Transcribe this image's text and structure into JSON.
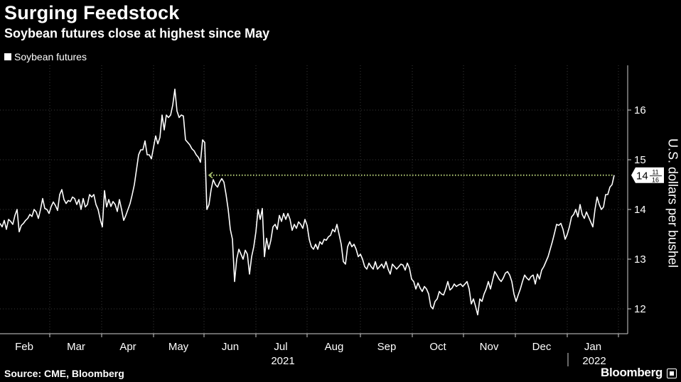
{
  "chart_data": {
    "type": "line",
    "title": "Surging Feedstock",
    "subtitle": "Soybean futures close at highest since May",
    "ylabel": "U.S. dollars per bushel",
    "series_name": "Soybean futures",
    "y_ticks": [
      12,
      13,
      14,
      15,
      16
    ],
    "ylim": [
      11.6,
      16.6
    ],
    "x_month_labels": [
      "Feb",
      "Mar",
      "Apr",
      "May",
      "Jun",
      "Jul",
      "Aug",
      "Sep",
      "Oct",
      "Nov",
      "Dec",
      "Jan"
    ],
    "year_labels": [
      "2021",
      "2022"
    ],
    "last_value_label": {
      "whole": "14",
      "num": "11",
      "den": "16"
    },
    "reference_line_value": 14.69,
    "line_color": "#ffffff",
    "reference_color": "#b8d27a",
    "points": [
      [
        0,
        13.72
      ],
      [
        3,
        13.65
      ],
      [
        6,
        13.78
      ],
      [
        9,
        13.6
      ],
      [
        12,
        13.8
      ],
      [
        15,
        13.76
      ],
      [
        18,
        13.7
      ],
      [
        21,
        13.88
      ],
      [
        24,
        14.0
      ],
      [
        27,
        13.55
      ],
      [
        30,
        13.68
      ],
      [
        33,
        13.72
      ],
      [
        36,
        13.78
      ],
      [
        39,
        13.82
      ],
      [
        42,
        13.9
      ],
      [
        45,
        13.86
      ],
      [
        48,
        14.0
      ],
      [
        51,
        13.95
      ],
      [
        54,
        13.82
      ],
      [
        57,
        14.0
      ],
      [
        60,
        14.22
      ],
      [
        63,
        14.02
      ],
      [
        66,
        14.0
      ],
      [
        69,
        13.92
      ],
      [
        72,
        14.06
      ],
      [
        75,
        14.15
      ],
      [
        78,
        14.08
      ],
      [
        81,
        13.98
      ],
      [
        84,
        14.3
      ],
      [
        87,
        14.4
      ],
      [
        90,
        14.2
      ],
      [
        93,
        14.12
      ],
      [
        96,
        14.18
      ],
      [
        99,
        14.16
      ],
      [
        102,
        14.25
      ],
      [
        105,
        14.22
      ],
      [
        108,
        14.1
      ],
      [
        111,
        14.2
      ],
      [
        114,
        14.0
      ],
      [
        117,
        14.22
      ],
      [
        120,
        14.05
      ],
      [
        123,
        14.1
      ],
      [
        126,
        14.3
      ],
      [
        129,
        14.25
      ],
      [
        132,
        14.3
      ],
      [
        135,
        14.1
      ],
      [
        138,
        14.0
      ],
      [
        141,
        13.8
      ],
      [
        144,
        13.65
      ],
      [
        147,
        14.38
      ],
      [
        150,
        14.05
      ],
      [
        153,
        14.2
      ],
      [
        156,
        14.06
      ],
      [
        159,
        14.16
      ],
      [
        162,
        14.1
      ],
      [
        165,
        13.96
      ],
      [
        168,
        14.2
      ],
      [
        171,
        14.0
      ],
      [
        174,
        13.78
      ],
      [
        177,
        13.88
      ],
      [
        180,
        14.0
      ],
      [
        183,
        14.12
      ],
      [
        186,
        14.3
      ],
      [
        189,
        14.5
      ],
      [
        192,
        14.8
      ],
      [
        195,
        15.1
      ],
      [
        198,
        15.2
      ],
      [
        201,
        15.2
      ],
      [
        204,
        15.38
      ],
      [
        207,
        15.1
      ],
      [
        210,
        15.1
      ],
      [
        213,
        15.02
      ],
      [
        216,
        15.25
      ],
      [
        219,
        15.48
      ],
      [
        222,
        15.32
      ],
      [
        225,
        15.45
      ],
      [
        228,
        15.9
      ],
      [
        231,
        15.6
      ],
      [
        234,
        15.9
      ],
      [
        237,
        15.85
      ],
      [
        240,
        15.9
      ],
      [
        243,
        16.1
      ],
      [
        246,
        16.42
      ],
      [
        249,
        15.98
      ],
      [
        252,
        15.85
      ],
      [
        255,
        15.9
      ],
      [
        258,
        15.88
      ],
      [
        261,
        15.4
      ],
      [
        264,
        15.35
      ],
      [
        267,
        15.3
      ],
      [
        270,
        15.22
      ],
      [
        273,
        15.18
      ],
      [
        276,
        15.1
      ],
      [
        279,
        15.05
      ],
      [
        282,
        14.95
      ],
      [
        285,
        15.4
      ],
      [
        288,
        15.35
      ],
      [
        291,
        14.0
      ],
      [
        294,
        14.1
      ],
      [
        297,
        14.4
      ],
      [
        300,
        14.6
      ],
      [
        303,
        14.5
      ],
      [
        306,
        14.45
      ],
      [
        309,
        14.55
      ],
      [
        312,
        14.62
      ],
      [
        315,
        14.55
      ],
      [
        318,
        14.3
      ],
      [
        321,
        14.0
      ],
      [
        324,
        13.6
      ],
      [
        327,
        13.4
      ],
      [
        330,
        12.55
      ],
      [
        333,
        13.0
      ],
      [
        336,
        13.2
      ],
      [
        339,
        13.1
      ],
      [
        342,
        13.0
      ],
      [
        345,
        13.18
      ],
      [
        348,
        13.1
      ],
      [
        351,
        12.7
      ],
      [
        354,
        13.05
      ],
      [
        357,
        13.25
      ],
      [
        360,
        13.55
      ],
      [
        363,
        14.0
      ],
      [
        366,
        13.8
      ],
      [
        369,
        14.02
      ],
      [
        372,
        13.05
      ],
      [
        375,
        13.42
      ],
      [
        378,
        13.2
      ],
      [
        381,
        13.38
      ],
      [
        384,
        13.65
      ],
      [
        387,
        13.7
      ],
      [
        390,
        13.6
      ],
      [
        393,
        13.88
      ],
      [
        396,
        13.76
      ],
      [
        399,
        13.92
      ],
      [
        402,
        13.8
      ],
      [
        405,
        13.92
      ],
      [
        408,
        13.8
      ],
      [
        411,
        13.58
      ],
      [
        414,
        13.7
      ],
      [
        417,
        13.62
      ],
      [
        420,
        13.75
      ],
      [
        423,
        13.7
      ],
      [
        426,
        13.62
      ],
      [
        429,
        13.8
      ],
      [
        432,
        13.68
      ],
      [
        435,
        13.4
      ],
      [
        438,
        13.25
      ],
      [
        441,
        13.2
      ],
      [
        444,
        13.3
      ],
      [
        447,
        13.2
      ],
      [
        450,
        13.35
      ],
      [
        453,
        13.3
      ],
      [
        456,
        13.4
      ],
      [
        459,
        13.38
      ],
      [
        462,
        13.45
      ],
      [
        465,
        13.48
      ],
      [
        468,
        13.6
      ],
      [
        471,
        13.55
      ],
      [
        474,
        13.7
      ],
      [
        477,
        13.5
      ],
      [
        480,
        13.3
      ],
      [
        483,
        12.95
      ],
      [
        486,
        12.9
      ],
      [
        489,
        13.25
      ],
      [
        492,
        13.35
      ],
      [
        495,
        13.25
      ],
      [
        498,
        13.3
      ],
      [
        501,
        13.2
      ],
      [
        504,
        13.05
      ],
      [
        507,
        13.1
      ],
      [
        510,
        13.0
      ],
      [
        513,
        12.85
      ],
      [
        516,
        12.8
      ],
      [
        519,
        12.92
      ],
      [
        522,
        12.85
      ],
      [
        525,
        12.8
      ],
      [
        528,
        12.95
      ],
      [
        531,
        12.8
      ],
      [
        534,
        12.85
      ],
      [
        537,
        12.9
      ],
      [
        540,
        12.82
      ],
      [
        543,
        12.95
      ],
      [
        546,
        12.8
      ],
      [
        549,
        12.7
      ],
      [
        552,
        12.9
      ],
      [
        555,
        12.85
      ],
      [
        558,
        12.8
      ],
      [
        561,
        12.85
      ],
      [
        564,
        12.9
      ],
      [
        567,
        12.88
      ],
      [
        570,
        12.78
      ],
      [
        573,
        12.92
      ],
      [
        576,
        12.82
      ],
      [
        579,
        12.6
      ],
      [
        582,
        12.55
      ],
      [
        585,
        12.4
      ],
      [
        588,
        12.52
      ],
      [
        591,
        12.42
      ],
      [
        594,
        12.35
      ],
      [
        597,
        12.45
      ],
      [
        600,
        12.4
      ],
      [
        603,
        12.3
      ],
      [
        606,
        12.05
      ],
      [
        609,
        12.0
      ],
      [
        612,
        12.15
      ],
      [
        615,
        12.2
      ],
      [
        618,
        12.35
      ],
      [
        621,
        12.3
      ],
      [
        624,
        12.28
      ],
      [
        627,
        12.4
      ],
      [
        630,
        12.55
      ],
      [
        633,
        12.38
      ],
      [
        636,
        12.42
      ],
      [
        639,
        12.5
      ],
      [
        642,
        12.45
      ],
      [
        645,
        12.48
      ],
      [
        648,
        12.5
      ],
      [
        651,
        12.45
      ],
      [
        654,
        12.5
      ],
      [
        657,
        12.55
      ],
      [
        660,
        12.4
      ],
      [
        663,
        12.1
      ],
      [
        666,
        12.2
      ],
      [
        669,
        12.05
      ],
      [
        672,
        11.88
      ],
      [
        675,
        12.2
      ],
      [
        678,
        12.15
      ],
      [
        681,
        12.3
      ],
      [
        684,
        12.4
      ],
      [
        687,
        12.55
      ],
      [
        690,
        12.4
      ],
      [
        693,
        12.58
      ],
      [
        696,
        12.75
      ],
      [
        699,
        12.68
      ],
      [
        702,
        12.6
      ],
      [
        705,
        12.55
      ],
      [
        708,
        12.62
      ],
      [
        711,
        12.72
      ],
      [
        714,
        12.75
      ],
      [
        717,
        12.68
      ],
      [
        720,
        12.55
      ],
      [
        723,
        12.3
      ],
      [
        726,
        12.15
      ],
      [
        729,
        12.28
      ],
      [
        732,
        12.4
      ],
      [
        735,
        12.55
      ],
      [
        738,
        12.68
      ],
      [
        741,
        12.62
      ],
      [
        744,
        12.58
      ],
      [
        747,
        12.65
      ],
      [
        750,
        12.68
      ],
      [
        753,
        12.5
      ],
      [
        756,
        12.7
      ],
      [
        759,
        12.6
      ],
      [
        762,
        12.78
      ],
      [
        765,
        12.85
      ],
      [
        768,
        12.95
      ],
      [
        771,
        13.05
      ],
      [
        774,
        13.2
      ],
      [
        777,
        13.35
      ],
      [
        780,
        13.52
      ],
      [
        783,
        13.7
      ],
      [
        786,
        13.68
      ],
      [
        789,
        13.72
      ],
      [
        792,
        13.6
      ],
      [
        795,
        13.4
      ],
      [
        798,
        13.5
      ],
      [
        801,
        13.65
      ],
      [
        804,
        13.85
      ],
      [
        807,
        13.9
      ],
      [
        810,
        14.0
      ],
      [
        813,
        13.85
      ],
      [
        816,
        14.1
      ],
      [
        819,
        13.9
      ],
      [
        822,
        13.82
      ],
      [
        825,
        13.95
      ],
      [
        828,
        13.85
      ],
      [
        831,
        13.75
      ],
      [
        834,
        13.65
      ],
      [
        837,
        14.0
      ],
      [
        840,
        14.25
      ],
      [
        843,
        14.1
      ],
      [
        846,
        14.0
      ],
      [
        849,
        14.05
      ],
      [
        852,
        14.3
      ],
      [
        855,
        14.3
      ],
      [
        858,
        14.45
      ],
      [
        861,
        14.5
      ],
      [
        864,
        14.69
      ]
    ]
  },
  "legend": {
    "label": "Soybean futures"
  },
  "footer": {
    "source": "Source: CME, Bloomberg",
    "brand": "Bloomberg"
  }
}
